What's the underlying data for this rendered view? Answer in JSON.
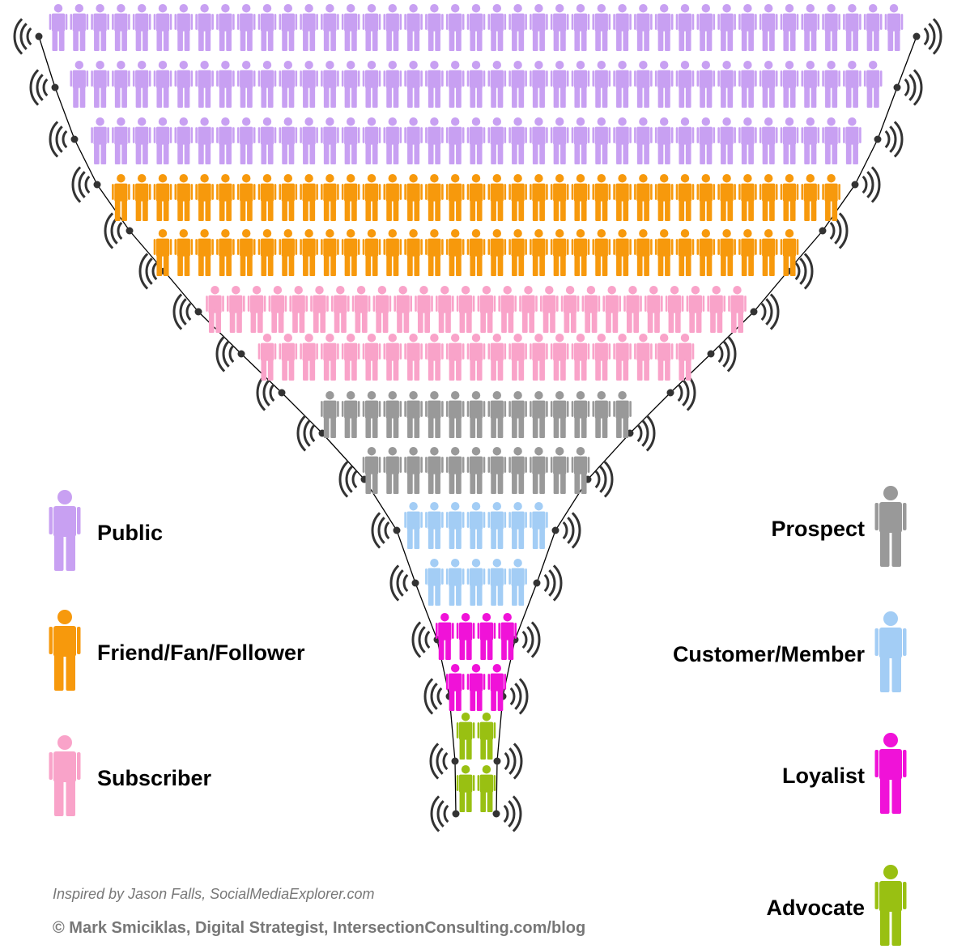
{
  "legend": [
    {
      "label": "Public",
      "color": "#c8a0f2",
      "rows": [
        41,
        39,
        37
      ]
    },
    {
      "label": "Friend/Fan/Follower",
      "color": "#f7990c",
      "rows": [
        35,
        31
      ]
    },
    {
      "label": "Subscriber",
      "color": "#f9a3c9",
      "rows": [
        26,
        21
      ]
    },
    {
      "label": "Prospect",
      "color": "#999999",
      "rows": [
        15,
        11
      ]
    },
    {
      "label": "Customer/Member",
      "color": "#a3cdf5",
      "rows": [
        7,
        5
      ]
    },
    {
      "label": "Loyalist",
      "color": "#f012d8",
      "rows": [
        4,
        3
      ]
    },
    {
      "label": "Advocate",
      "color": "#99c012",
      "rows": [
        2,
        2
      ]
    }
  ],
  "credits": {
    "inspired": "Inspired by Jason Falls, SocialMediaExplorer.com",
    "copyright": "© Mark Smiciklas, Digital Strategist, IntersectionConsulting.com/blog"
  }
}
